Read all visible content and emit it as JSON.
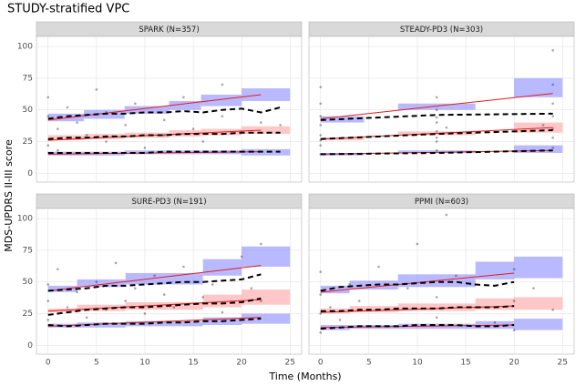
{
  "figure": {
    "title": "STUDY-stratified VPC",
    "x_label": "Time (Months)",
    "y_label": "MDS-UPDRS II-III score"
  },
  "chart_data": [
    {
      "type": "scatter",
      "title": "SPARK (N=357)",
      "xlim": [
        -1.2,
        26.2
      ],
      "ylim": [
        -7,
        108
      ],
      "xticks": [
        0,
        5,
        10,
        15,
        20,
        25
      ],
      "yticks": [
        0,
        25,
        50,
        75,
        100
      ],
      "grid": true,
      "points": {
        "color": "#000000",
        "x": [
          0,
          0,
          0,
          1,
          1,
          2,
          2,
          3,
          4,
          5,
          6,
          6,
          8,
          9,
          10,
          12,
          12,
          14,
          15,
          16,
          18,
          18,
          20,
          22,
          24
        ],
        "y": [
          22,
          45,
          60,
          18,
          35,
          28,
          52,
          40,
          30,
          66,
          25,
          48,
          38,
          55,
          20,
          42,
          30,
          60,
          35,
          25,
          45,
          70,
          32,
          40,
          38
        ]
      },
      "bins": [
        0,
        3.7,
        7.9,
        12.5,
        15.8,
        20,
        25
      ],
      "bands": [
        {
          "color": "#8080ff",
          "lo": [
            41,
            43,
            47,
            50,
            53,
            57
          ],
          "hi": [
            47,
            50,
            53,
            57,
            62,
            67
          ]
        },
        {
          "color": "#ff9999",
          "lo": [
            26,
            27,
            28,
            29,
            30,
            31
          ],
          "hi": [
            30,
            31,
            32,
            34,
            35,
            37
          ]
        },
        {
          "color": "#8080ff",
          "lo": [
            14,
            14,
            15,
            15,
            15,
            14
          ],
          "hi": [
            17,
            17,
            18,
            18,
            18,
            19
          ]
        }
      ],
      "predicted": {
        "color": "#e41a1c",
        "x": [
          0,
          22
        ],
        "series": [
          {
            "values": [
              42,
              62
            ]
          },
          {
            "values": [
              26,
              34
            ]
          },
          {
            "values": [
              15,
              17
            ]
          }
        ]
      },
      "observed": {
        "color": "#000000",
        "x": [
          0,
          2,
          4,
          6,
          8,
          10,
          12,
          14,
          16,
          18,
          20,
          22,
          24
        ],
        "series": [
          {
            "values": [
              43,
              45,
              46,
              47,
              47,
              48,
              48,
              49,
              48,
              50,
              51,
              48,
              52
            ]
          },
          {
            "values": [
              27,
              28,
              28,
              29,
              29,
              30,
              30,
              31,
              31,
              31,
              32,
              32,
              32
            ]
          },
          {
            "values": [
              16,
              16,
              16,
              16,
              16,
              16,
              17,
              17,
              17,
              17,
              17,
              17,
              17
            ]
          }
        ]
      }
    },
    {
      "type": "scatter",
      "title": "STEADY-PD3 (N=303)",
      "xlim": [
        -1.2,
        26.2
      ],
      "ylim": [
        -7,
        108
      ],
      "xticks": [
        0,
        5,
        10,
        15,
        20,
        25
      ],
      "yticks": [
        0,
        25,
        50,
        75,
        100
      ],
      "grid": true,
      "points": {
        "color": "#000000",
        "x": [
          0,
          0,
          0,
          0,
          0,
          0,
          0,
          12,
          12,
          12,
          12,
          12,
          12,
          12,
          13,
          24,
          24,
          24,
          24,
          24,
          24,
          24,
          23,
          0,
          12
        ],
        "y": [
          15,
          22,
          30,
          38,
          45,
          55,
          68,
          18,
          25,
          33,
          40,
          50,
          60,
          28,
          36,
          20,
          28,
          35,
          45,
          55,
          70,
          97,
          38,
          26,
          44
        ]
      },
      "bins": [
        0,
        4.5,
        8,
        16,
        20,
        25
      ],
      "bands": [
        {
          "color": "#8080ff",
          "lo": [
            40,
            null,
            50,
            null,
            60
          ],
          "hi": [
            45,
            null,
            55,
            null,
            75
          ]
        },
        {
          "color": "#ff9999",
          "lo": [
            26,
            null,
            30,
            null,
            32
          ],
          "hi": [
            28,
            null,
            33,
            null,
            40
          ]
        },
        {
          "color": "#8080ff",
          "lo": [
            14,
            null,
            16,
            null,
            16
          ],
          "hi": [
            16,
            null,
            18,
            null,
            22
          ]
        }
      ],
      "predicted": {
        "color": "#e41a1c",
        "x": [
          0,
          24
        ],
        "series": [
          {
            "values": [
              43,
              63
            ]
          },
          {
            "values": [
              27,
              36
            ]
          },
          {
            "values": [
              15,
              18
            ]
          }
        ]
      },
      "observed": {
        "color": "#000000",
        "x": [
          0,
          12,
          24
        ],
        "series": [
          {
            "values": [
              42,
              46,
              47
            ]
          },
          {
            "values": [
              27,
              31,
              34
            ]
          },
          {
            "values": [
              15,
              16,
              18
            ]
          }
        ]
      }
    },
    {
      "type": "scatter",
      "title": "SURE-PD3 (N=191)",
      "xlim": [
        -1.2,
        26.2
      ],
      "ylim": [
        -7,
        108
      ],
      "xticks": [
        0,
        5,
        10,
        15,
        20,
        25
      ],
      "yticks": [
        0,
        25,
        50,
        75,
        100
      ],
      "grid": true,
      "points": {
        "color": "#000000",
        "x": [
          0,
          0,
          0,
          1,
          1,
          2,
          3,
          4,
          5,
          6,
          7,
          8,
          9,
          10,
          11,
          12,
          13,
          14,
          16,
          17,
          18,
          20,
          21,
          22,
          22
        ],
        "y": [
          20,
          35,
          48,
          25,
          60,
          30,
          42,
          22,
          50,
          28,
          65,
          35,
          45,
          25,
          55,
          40,
          30,
          62,
          38,
          48,
          26,
          70,
          45,
          35,
          80
        ]
      },
      "bins": [
        0,
        3,
        8,
        16,
        20,
        25
      ],
      "bands": [
        {
          "color": "#8080ff",
          "lo": [
            42,
            46,
            48,
            55,
            62
          ],
          "hi": [
            47,
            52,
            57,
            68,
            78
          ]
        },
        {
          "color": "#ff9999",
          "lo": [
            26,
            27,
            28,
            30,
            32
          ],
          "hi": [
            29,
            32,
            34,
            40,
            44
          ]
        },
        {
          "color": "#8080ff",
          "lo": [
            14,
            14,
            15,
            16,
            17
          ],
          "hi": [
            17,
            18,
            19,
            22,
            25
          ]
        }
      ],
      "predicted": {
        "color": "#e41a1c",
        "x": [
          0,
          22
        ],
        "series": [
          {
            "values": [
              43,
              63
            ]
          },
          {
            "values": [
              27,
              36
            ]
          },
          {
            "values": [
              15,
              22
            ]
          }
        ]
      },
      "observed": {
        "color": "#000000",
        "x": [
          0,
          2,
          4,
          6,
          8,
          10,
          12,
          14,
          16,
          18,
          20,
          22
        ],
        "series": [
          {
            "values": [
              43,
              44,
              45,
              47,
              47,
              48,
              49,
              50,
              50,
              51,
              52,
              56
            ]
          },
          {
            "values": [
              24,
              26,
              28,
              29,
              30,
              30,
              31,
              32,
              33,
              33,
              34,
              37
            ]
          },
          {
            "values": [
              16,
              15,
              16,
              17,
              17,
              17,
              18,
              18,
              19,
              19,
              20,
              21
            ]
          }
        ]
      }
    },
    {
      "type": "scatter",
      "title": "PPMI (N=603)",
      "xlim": [
        -1.2,
        26.2
      ],
      "ylim": [
        -7,
        108
      ],
      "xticks": [
        0,
        5,
        10,
        15,
        20,
        25
      ],
      "yticks": [
        0,
        25,
        50,
        75,
        100
      ],
      "grid": true,
      "points": {
        "color": "#000000",
        "x": [
          0,
          0,
          0,
          0,
          1,
          2,
          3,
          4,
          6,
          6,
          8,
          9,
          10,
          12,
          12,
          13,
          14,
          16,
          16,
          18,
          20,
          20,
          20,
          22,
          24
        ],
        "y": [
          10,
          25,
          40,
          58,
          30,
          20,
          48,
          35,
          15,
          62,
          28,
          45,
          80,
          22,
          38,
          103,
          55,
          30,
          48,
          18,
          35,
          60,
          12,
          45,
          28
        ]
      },
      "bins": [
        0,
        3,
        8,
        16,
        20,
        25
      ],
      "bands": [
        {
          "color": "#8080ff",
          "lo": [
            41,
            44,
            46,
            52,
            53
          ],
          "hi": [
            47,
            51,
            56,
            66,
            70
          ]
        },
        {
          "color": "#ff9999",
          "lo": [
            25,
            26,
            27,
            28,
            28
          ],
          "hi": [
            29,
            31,
            33,
            37,
            38
          ]
        },
        {
          "color": "#8080ff",
          "lo": [
            12,
            13,
            13,
            13,
            12
          ],
          "hi": [
            16,
            16,
            17,
            19,
            21
          ]
        }
      ],
      "predicted": {
        "color": "#e41a1c",
        "x": [
          0,
          20
        ],
        "series": [
          {
            "values": [
              42,
              57
            ]
          },
          {
            "values": [
              26,
              31
            ]
          },
          {
            "values": [
              14,
              16
            ]
          }
        ]
      },
      "observed": {
        "color": "#000000",
        "x": [
          0,
          2,
          4,
          6,
          8,
          10,
          12,
          14,
          16,
          18,
          20
        ],
        "series": [
          {
            "values": [
              43,
              46,
              47,
              48,
              48,
              49,
              50,
              50,
              48,
              47,
              50
            ]
          },
          {
            "values": [
              27,
              27,
              28,
              28,
              29,
              29,
              29,
              30,
              30,
              30,
              31
            ]
          },
          {
            "values": [
              13,
              14,
              15,
              15,
              15,
              16,
              16,
              16,
              15,
              15,
              16
            ]
          }
        ]
      }
    }
  ]
}
